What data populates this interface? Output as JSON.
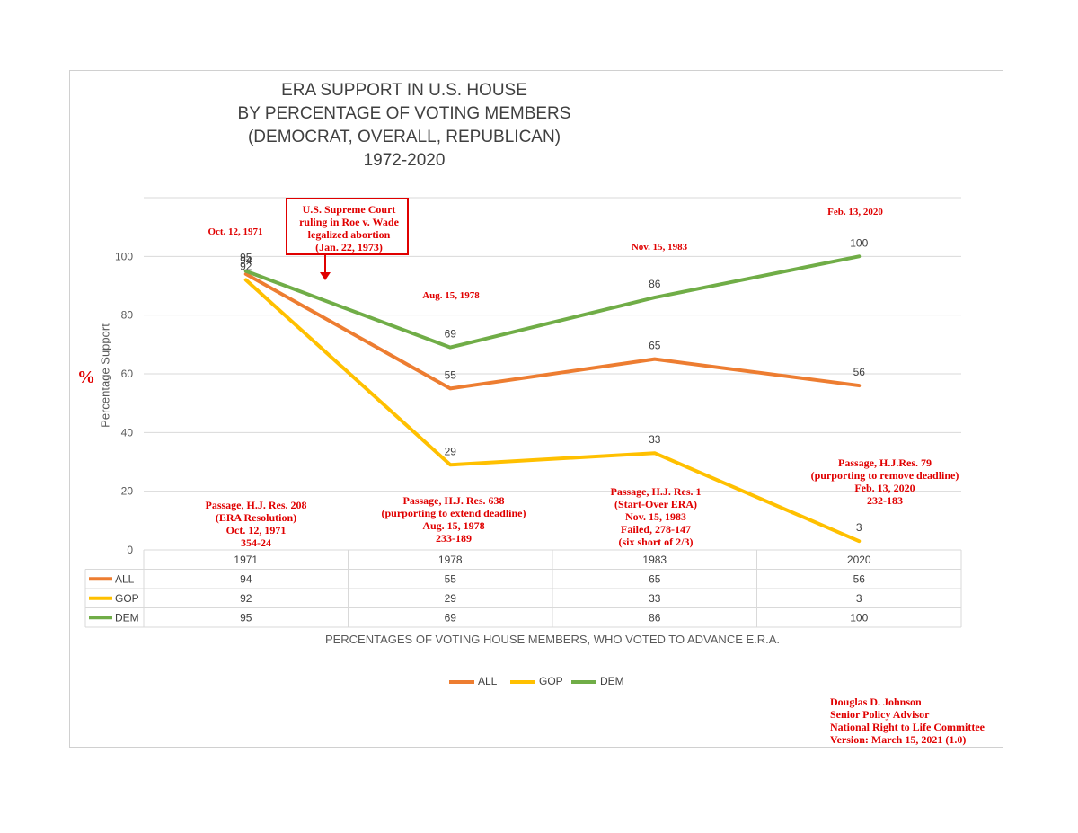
{
  "chart_data": {
    "type": "line",
    "title_lines": [
      "ERA SUPPORT IN U.S. HOUSE",
      "BY PERCENTAGE OF VOTING MEMBERS",
      "(DEMOCRAT, OVERALL, REPUBLICAN)",
      "1972-2020"
    ],
    "categories": [
      "1971",
      "1978",
      "1983",
      "2020"
    ],
    "series": [
      {
        "name": "ALL",
        "color": "#ed7d31",
        "values": [
          94,
          55,
          65,
          56
        ]
      },
      {
        "name": "GOP",
        "color": "#ffc000",
        "values": [
          92,
          29,
          33,
          3
        ]
      },
      {
        "name": "DEM",
        "color": "#70ad47",
        "values": [
          95,
          69,
          86,
          100
        ]
      }
    ],
    "ylabel": "Percentage Support",
    "xlabel": "PERCENTAGES OF VOTING HOUSE MEMBERS, WHO VOTED TO ADVANCE E.R.A.",
    "ylim": [
      0,
      120
    ],
    "yticks": [
      0,
      20,
      40,
      60,
      80,
      100
    ],
    "legend_position": "bottom",
    "grid": true
  },
  "annotations": {
    "percent_sign": "%",
    "dates": [
      "Oct. 12, 1971",
      "Aug. 15, 1978",
      "Nov. 15, 1983",
      "Feb. 13, 2020"
    ],
    "roe_box": [
      "U.S. Supreme Court",
      "ruling in Roe v. Wade",
      "legalized abortion",
      "(Jan. 22, 1973)"
    ],
    "passage_1971": [
      "Passage, H.J. Res. 208",
      "(ERA Resolution)",
      "Oct. 12, 1971",
      "354-24"
    ],
    "passage_1978": [
      "Passage, H.J. Res. 638",
      "(purporting to extend deadline)",
      "Aug. 15, 1978",
      "233-189"
    ],
    "passage_1983": [
      "Passage, H.J. Res. 1",
      "(Start-Over ERA)",
      "Nov. 15, 1983",
      "Failed, 278-147",
      "(six short of 2/3)"
    ],
    "passage_2020": [
      "Passage, H.J.Res. 79",
      "(purporting to remove deadline)",
      "Feb. 13, 2020",
      "232-183"
    ]
  },
  "author": [
    "Douglas D. Johnson",
    "Senior Policy Advisor",
    "National Right to Life Committee",
    "Version: March 15, 2021 (1.0)"
  ]
}
